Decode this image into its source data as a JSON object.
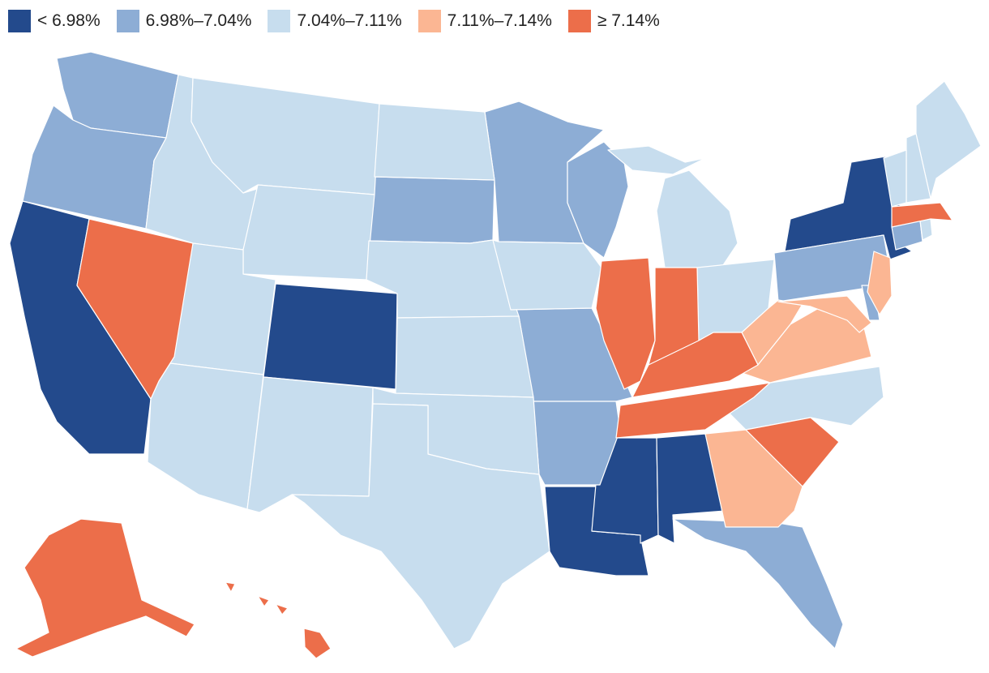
{
  "colors": {
    "bin1": "#234a8c",
    "bin2": "#8dadd5",
    "bin3": "#c7ddee",
    "bin4": "#fbb693",
    "bin5": "#ec6e4a"
  },
  "legend": [
    {
      "label": "< 6.98%",
      "color": "#234a8c"
    },
    {
      "label": "6.98%–7.04%",
      "color": "#8dadd5"
    },
    {
      "label": "7.04%–7.11%",
      "color": "#c7ddee"
    },
    {
      "label": "7.11%–7.14%",
      "color": "#fbb693"
    },
    {
      "label": "≥ 7.14%",
      "color": "#ec6e4a"
    }
  ],
  "chart_data": {
    "type": "choropleth",
    "bins": [
      "< 6.98%",
      "6.98%–7.04%",
      "7.04%–7.11%",
      "7.11%–7.14%",
      "≥ 7.14%"
    ],
    "states": {
      "CA": "< 6.98%",
      "CO": "< 6.98%",
      "LA": "< 6.98%",
      "MS": "< 6.98%",
      "AL": "< 6.98%",
      "NY": "< 6.98%",
      "WA": "6.98%–7.04%",
      "OR": "6.98%–7.04%",
      "SD": "6.98%–7.04%",
      "MN": "6.98%–7.04%",
      "WI": "6.98%–7.04%",
      "MO": "6.98%–7.04%",
      "AR": "6.98%–7.04%",
      "PA": "6.98%–7.04%",
      "CT": "6.98%–7.04%",
      "DE": "6.98%–7.04%",
      "FL": "6.98%–7.04%",
      "ID": "7.04%–7.11%",
      "MT": "7.04%–7.11%",
      "WY": "7.04%–7.11%",
      "ND": "7.04%–7.11%",
      "NE": "7.04%–7.11%",
      "UT": "7.04%–7.11%",
      "AZ": "7.04%–7.11%",
      "NM": "7.04%–7.11%",
      "KS": "7.04%–7.11%",
      "OK": "7.04%–7.11%",
      "TX": "7.04%–7.11%",
      "IA": "7.04%–7.11%",
      "MI": "7.04%–7.11%",
      "OH": "7.04%–7.11%",
      "NC": "7.04%–7.11%",
      "ME": "7.04%–7.11%",
      "NH": "7.04%–7.11%",
      "VT": "7.04%–7.11%",
      "RI": "7.04%–7.11%",
      "WV": "7.11%–7.14%",
      "VA": "7.11%–7.14%",
      "MD": "7.11%–7.14%",
      "NJ": "7.11%–7.14%",
      "GA": "7.11%–7.14%",
      "NV": "≥ 7.14%",
      "IL": "≥ 7.14%",
      "IN": "≥ 7.14%",
      "KY": "≥ 7.14%",
      "TN": "≥ 7.14%",
      "SC": "≥ 7.14%",
      "MA": "≥ 7.14%",
      "AK": "≥ 7.14%",
      "HI": "≥ 7.14%"
    }
  }
}
